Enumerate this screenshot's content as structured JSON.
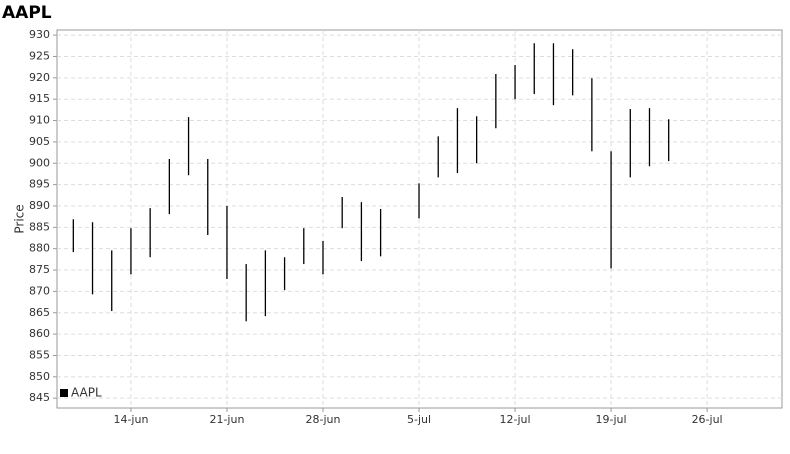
{
  "chart_data": {
    "type": "highlow",
    "title": "AAPL",
    "y_label": "Price",
    "x": [
      0,
      1,
      2,
      3,
      4,
      5,
      6,
      7,
      8,
      9,
      10,
      11,
      12,
      13,
      14,
      15,
      16,
      18,
      19,
      20,
      21,
      22,
      23,
      24,
      25,
      26,
      27,
      28,
      29,
      30,
      31
    ],
    "series": [
      {
        "name": "AAPL",
        "color": "#000000",
        "high": [
          886.9,
          886.2,
          879.6,
          884.8,
          889.5,
          901.0,
          910.8,
          901.0,
          890.0,
          876.4,
          879.6,
          878.0,
          884.8,
          881.8,
          892.1,
          890.9,
          889.3,
          895.3,
          906.3,
          912.9,
          911.0,
          920.9,
          923.0,
          928.1,
          928.1,
          926.7,
          919.9,
          902.8,
          912.7,
          912.9,
          910.3
        ],
        "low": [
          879.2,
          869.3,
          865.4,
          874.0,
          878.0,
          888.1,
          897.2,
          883.2,
          872.9,
          863.0,
          864.2,
          870.3,
          876.4,
          874.0,
          884.8,
          877.1,
          878.2,
          887.1,
          896.7,
          897.7,
          900.0,
          908.2,
          915.0,
          916.2,
          913.6,
          915.9,
          902.8,
          875.4,
          896.7,
          899.3,
          900.5
        ]
      }
    ],
    "xlim": [
      -0.85,
      36.9
    ],
    "xticks": [
      {
        "value": 3,
        "label": "14-jun"
      },
      {
        "value": 8,
        "label": "21-jun"
      },
      {
        "value": 13,
        "label": "28-jun"
      },
      {
        "value": 18,
        "label": "5-jul"
      },
      {
        "value": 23,
        "label": "12-jul"
      },
      {
        "value": 28,
        "label": "19-jul"
      },
      {
        "value": 33,
        "label": "26-jul"
      }
    ],
    "ylim": [
      842.7,
      931.2
    ],
    "yticks": [
      845,
      850,
      855,
      860,
      865,
      870,
      875,
      880,
      885,
      890,
      895,
      900,
      905,
      910,
      915,
      920,
      925,
      930
    ],
    "grid": true,
    "legend": "lower left"
  }
}
